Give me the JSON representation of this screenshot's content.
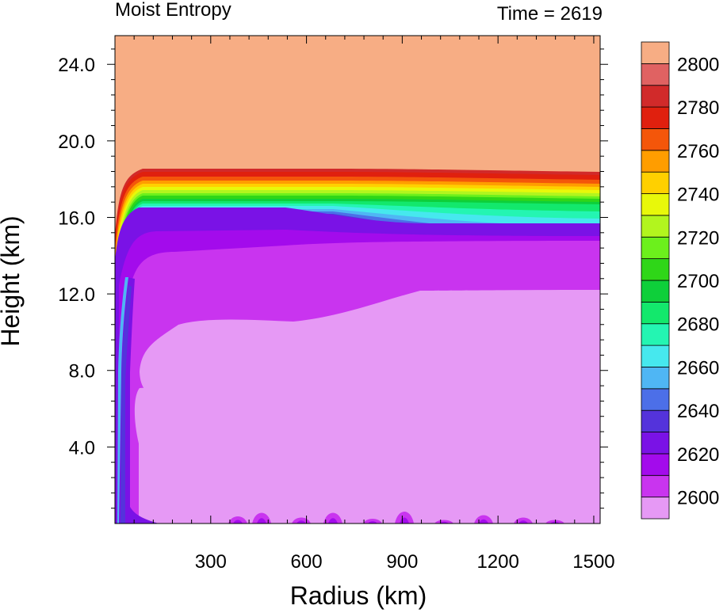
{
  "chart_data": {
    "type": "heatmap",
    "title_left": "Moist Entropy",
    "title_right": "Time = 2619",
    "xlabel": "Radius (km)",
    "ylabel": "Height (km)",
    "xlim": [
      0,
      1520
    ],
    "ylim": [
      0,
      25.5
    ],
    "x_ticks": [
      300,
      600,
      900,
      1200,
      1500
    ],
    "x_tick_labels": [
      "300",
      "600",
      "900",
      "1200",
      "1500"
    ],
    "y_ticks": [
      4,
      8,
      12,
      16,
      20,
      24
    ],
    "y_tick_labels": [
      "4.0",
      "8.0",
      "12.0",
      "16.0",
      "20.0",
      "24.0"
    ],
    "colorbar": {
      "levels": [
        2600,
        2610,
        2620,
        2630,
        2640,
        2650,
        2660,
        2670,
        2680,
        2690,
        2700,
        2710,
        2720,
        2730,
        2740,
        2750,
        2760,
        2770,
        2780,
        2790,
        2800
      ],
      "colors": [
        "#e699f5",
        "#c934ef",
        "#a30bec",
        "#7a12e6",
        "#5433db",
        "#4c6fe8",
        "#4fb6f4",
        "#46e8ee",
        "#24f5b2",
        "#13e86c",
        "#0ecf3a",
        "#2fd618",
        "#6cf01c",
        "#b2f51e",
        "#e8f80a",
        "#ffd000",
        "#ff9d00",
        "#f4560a",
        "#e0200e",
        "#d12a2a",
        "#e06262",
        "#f7ad84"
      ],
      "labels": [
        "2600",
        "2620",
        "2640",
        "2660",
        "2680",
        "2700",
        "2720",
        "2740",
        "2760",
        "2780",
        "2800"
      ],
      "label_values": [
        2600,
        2620,
        2640,
        2660,
        2680,
        2700,
        2720,
        2740,
        2760,
        2780,
        2800
      ]
    },
    "field_summary": [
      {
        "range": "above ~18.7 km",
        "value": "> 2800"
      },
      {
        "range": "~16.8–18.7 km, r > 80 km",
        "value": "2640–2800 sharp gradient"
      },
      {
        "range": "~15–16.8 km",
        "value": "2620–2640"
      },
      {
        "range": "~12.5–15 km",
        "value": "2610–2620"
      },
      {
        "range": "below ~12.5 km, r > 150 km",
        "value": "< 2610"
      },
      {
        "range": "eyewall r < 60 km",
        "value": "2620–2680 column"
      }
    ]
  }
}
